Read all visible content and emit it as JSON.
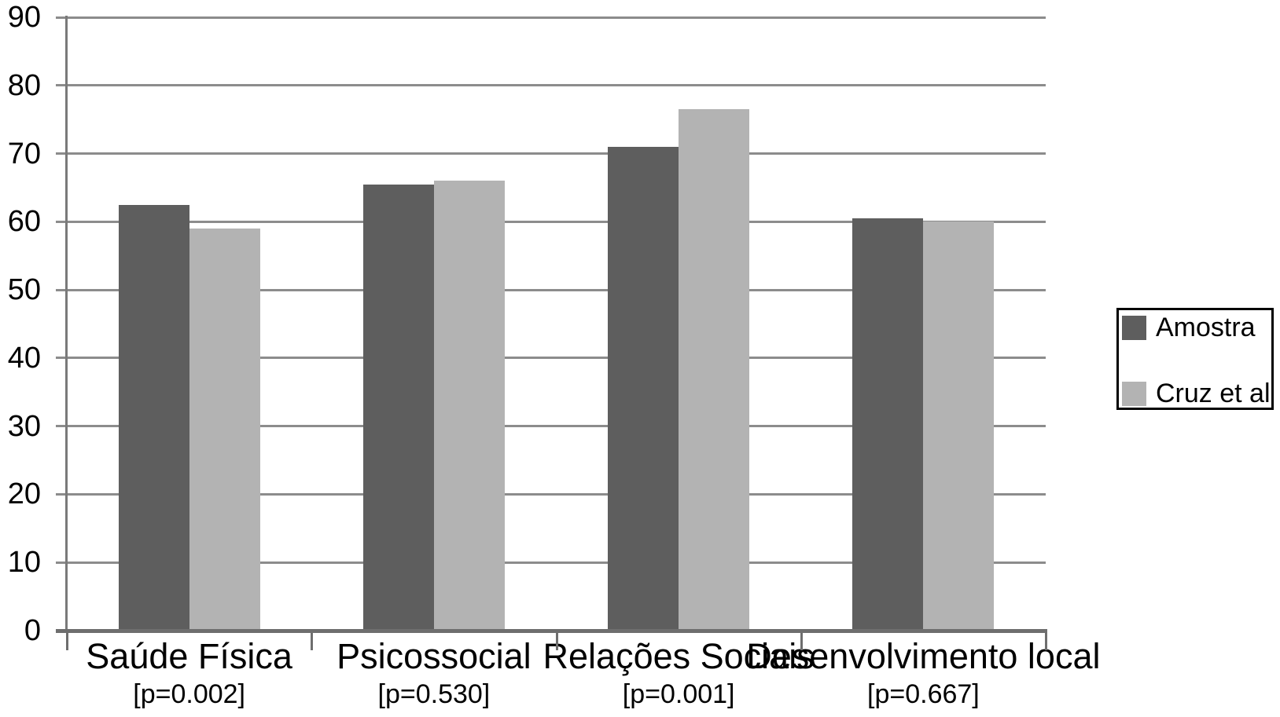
{
  "chart_data": {
    "type": "bar",
    "title": "",
    "xlabel": "",
    "ylabel": "",
    "categories": [
      "Saúde Física",
      "Psicossocial",
      "Relações Sociais",
      "Desenvolvimento local"
    ],
    "category_sublabels": [
      "[p=0.002]",
      "[p=0.530]",
      "[p=0.001]",
      "[p=0.667]"
    ],
    "series": [
      {
        "name": "Amostra",
        "color": "#5e5e5e",
        "values": [
          62.5,
          65.5,
          71.0,
          60.5
        ]
      },
      {
        "name": "Cruz et al",
        "color": "#b3b3b3",
        "values": [
          59.0,
          66.0,
          76.5,
          60.0
        ]
      }
    ],
    "y_ticks": [
      0,
      10,
      20,
      30,
      40,
      50,
      60,
      70,
      80,
      90
    ],
    "ylim": [
      0,
      90
    ],
    "grid": true,
    "legend_position": "right",
    "colors": {
      "gridline": "#8c8c8c",
      "axis": "#6e6e6e",
      "text": "#000000",
      "background": "#ffffff",
      "legend_border": "#000000"
    }
  }
}
